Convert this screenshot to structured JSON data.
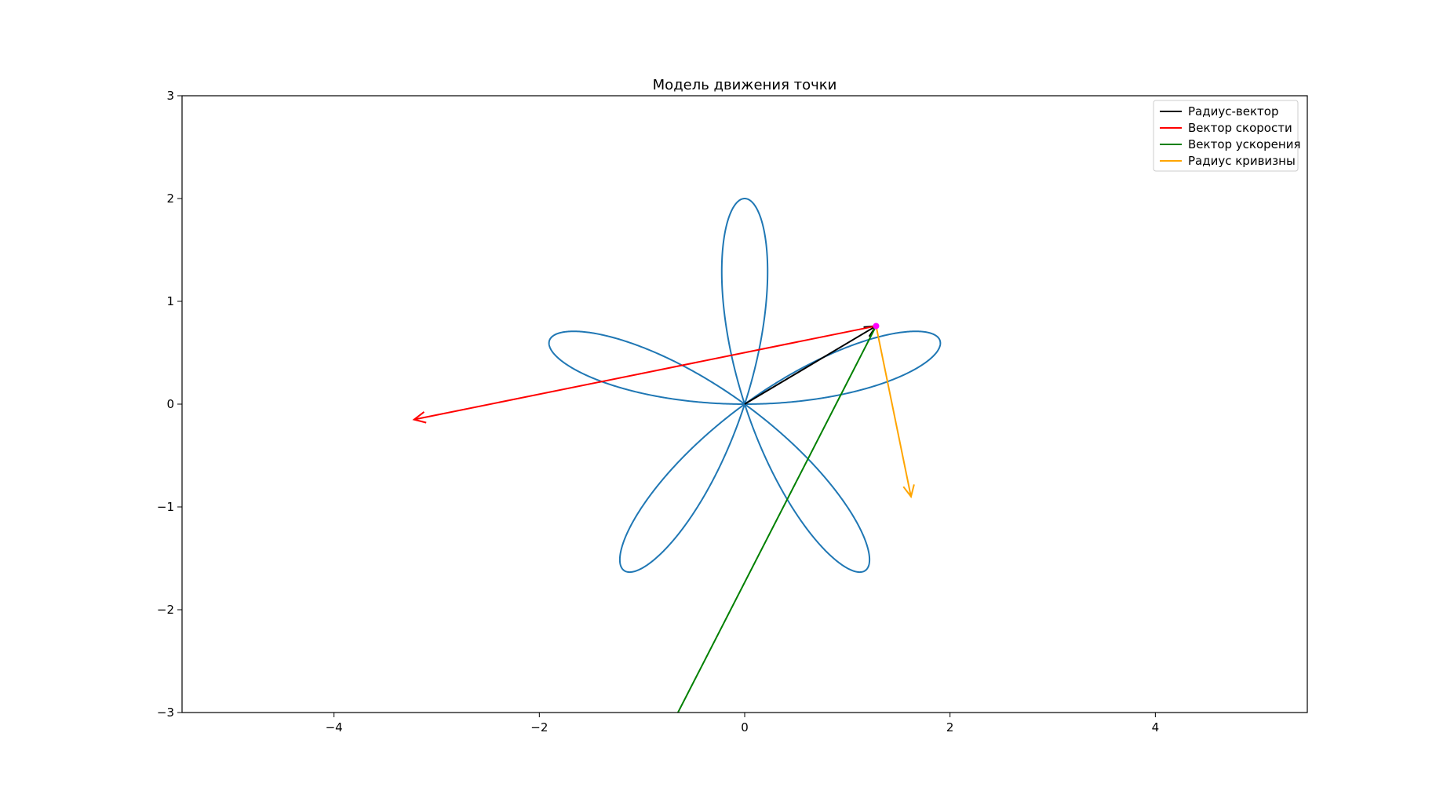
{
  "chart_data": {
    "type": "line",
    "title": "Модель движения точки",
    "xlabel": "",
    "ylabel": "",
    "xlim": [
      -5.48,
      5.48
    ],
    "ylim": [
      -3,
      3
    ],
    "xticks": [
      -4,
      -2,
      0,
      2,
      4
    ],
    "xtick_labels": [
      "−4",
      "−2",
      "0",
      "2",
      "4"
    ],
    "yticks": [
      -3,
      -2,
      -1,
      0,
      1,
      2,
      3
    ],
    "ytick_labels": [
      "−3",
      "−2",
      "−1",
      "0",
      "1",
      "2",
      "3"
    ],
    "grid": false,
    "legend_position": "upper right",
    "trajectory": {
      "equation_polar": "r = 2*sin(5*phi)... rose curve with 5 petals",
      "petals": 5,
      "amplitude": 2,
      "color": "#1f77b4"
    },
    "point": {
      "x": 1.28,
      "y": 0.76,
      "color": "#ff00ff"
    },
    "series": [
      {
        "name": "Радиус-вектор",
        "color": "#000000",
        "from": [
          0,
          0
        ],
        "to": [
          1.28,
          0.76
        ],
        "arrow": true
      },
      {
        "name": "Вектор скорости",
        "color": "#ff0000",
        "from": [
          1.28,
          0.76
        ],
        "to": [
          -3.22,
          -0.15
        ],
        "arrow": true
      },
      {
        "name": "Вектор ускорения",
        "color": "#008000",
        "from": [
          1.28,
          0.76
        ],
        "to": [
          -0.65,
          -3.0
        ],
        "arrow": false
      },
      {
        "name": "Радиус кривизны",
        "color": "#ffa500",
        "from": [
          1.28,
          0.76
        ],
        "to": [
          1.62,
          -0.9
        ],
        "arrow": true
      }
    ]
  }
}
